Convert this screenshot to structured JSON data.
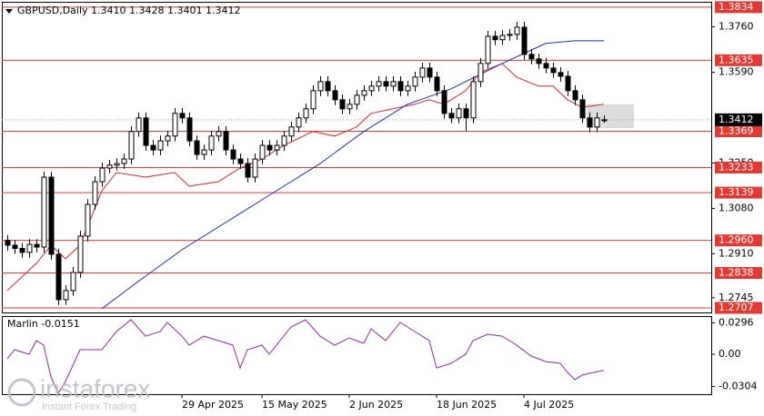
{
  "chart_data": {
    "type": "candlestick",
    "title": "GBPUSD,Daily  1.3410 1.3428 1.3401 1.3412",
    "open": [
      1.296,
      1.2942,
      1.293,
      1.2915,
      1.2945,
      1.2935,
      1.3197,
      1.2908,
      1.2738,
      1.2772,
      1.284,
      1.2976,
      1.3095,
      1.318,
      1.3231,
      1.3242,
      1.3248,
      1.3265,
      1.3368,
      1.3419,
      1.3316,
      1.3299,
      1.3333,
      1.3351,
      1.3436,
      1.3419,
      1.3333,
      1.3282,
      1.3299,
      1.3351,
      1.3368,
      1.3299,
      1.3265,
      1.3248,
      1.3197,
      1.3265,
      1.3316,
      1.3299,
      1.3316,
      1.3351,
      1.3385,
      1.3419,
      1.3453,
      1.3521,
      1.3555,
      1.3521,
      1.3487,
      1.3453,
      1.347,
      1.3504,
      1.3521,
      1.3538,
      1.3555,
      1.3538,
      1.3555,
      1.3521,
      1.3538,
      1.3572,
      1.3606,
      1.3572,
      1.3521,
      1.3436,
      1.3419,
      1.3453,
      1.3419,
      1.3555,
      1.3623,
      1.3725,
      1.3712,
      1.3728,
      1.3732,
      1.3759,
      1.3657,
      1.364,
      1.3623,
      1.3606,
      1.3589,
      1.3575,
      1.3521,
      1.3487,
      1.3419,
      1.3385,
      1.341
    ],
    "high": [
      1.298,
      1.2962,
      1.295,
      1.2965,
      1.2965,
      1.3217,
      1.3217,
      1.2928,
      1.2792,
      1.286,
      1.2996,
      1.3115,
      1.32,
      1.3251,
      1.3262,
      1.3268,
      1.3285,
      1.3388,
      1.3439,
      1.3439,
      1.3336,
      1.3353,
      1.3371,
      1.3456,
      1.3456,
      1.3439,
      1.3353,
      1.3319,
      1.3371,
      1.3388,
      1.3388,
      1.3319,
      1.3285,
      1.3268,
      1.3285,
      1.3336,
      1.3336,
      1.3336,
      1.3371,
      1.3405,
      1.3439,
      1.3473,
      1.3541,
      1.3575,
      1.3575,
      1.3541,
      1.3507,
      1.349,
      1.3524,
      1.3541,
      1.3558,
      1.3575,
      1.3575,
      1.3575,
      1.3575,
      1.3558,
      1.3592,
      1.3626,
      1.3626,
      1.3592,
      1.3541,
      1.3456,
      1.3473,
      1.3473,
      1.3575,
      1.3643,
      1.3745,
      1.3745,
      1.3748,
      1.3752,
      1.3779,
      1.3779,
      1.3677,
      1.366,
      1.3643,
      1.3626,
      1.3609,
      1.3595,
      1.3541,
      1.3507,
      1.3439,
      1.3439,
      1.3428
    ],
    "low": [
      1.2922,
      1.291,
      1.2895,
      1.2895,
      1.2915,
      1.2915,
      1.2888,
      1.2718,
      1.2718,
      1.2752,
      1.282,
      1.2956,
      1.3075,
      1.316,
      1.3211,
      1.3222,
      1.3228,
      1.3245,
      1.3348,
      1.3296,
      1.3279,
      1.3279,
      1.3313,
      1.3331,
      1.3399,
      1.3313,
      1.3262,
      1.3262,
      1.3279,
      1.3331,
      1.3279,
      1.3245,
      1.3228,
      1.3177,
      1.3177,
      1.3245,
      1.3279,
      1.3279,
      1.3296,
      1.3331,
      1.3365,
      1.3399,
      1.3433,
      1.3501,
      1.3501,
      1.3467,
      1.3433,
      1.3433,
      1.345,
      1.3484,
      1.3501,
      1.3518,
      1.3518,
      1.3518,
      1.3501,
      1.3501,
      1.3518,
      1.3552,
      1.3552,
      1.3501,
      1.3416,
      1.3399,
      1.3399,
      1.337,
      1.3399,
      1.3535,
      1.3603,
      1.3692,
      1.3692,
      1.3708,
      1.3712,
      1.3637,
      1.362,
      1.3603,
      1.3586,
      1.3569,
      1.3555,
      1.3501,
      1.3467,
      1.3399,
      1.3365,
      1.3365,
      1.3401
    ],
    "close": [
      1.2942,
      1.293,
      1.2915,
      1.2945,
      1.2935,
      1.3197,
      1.2908,
      1.2738,
      1.2772,
      1.284,
      1.2976,
      1.3095,
      1.318,
      1.3231,
      1.3242,
      1.3248,
      1.3265,
      1.3368,
      1.3419,
      1.3316,
      1.3299,
      1.3333,
      1.3351,
      1.3436,
      1.3419,
      1.3333,
      1.3282,
      1.3299,
      1.3351,
      1.3368,
      1.3299,
      1.3265,
      1.3248,
      1.3197,
      1.3265,
      1.3316,
      1.3299,
      1.3316,
      1.3351,
      1.3385,
      1.3419,
      1.3453,
      1.3521,
      1.3555,
      1.3521,
      1.3487,
      1.3453,
      1.347,
      1.3504,
      1.3521,
      1.3538,
      1.3555,
      1.3538,
      1.3555,
      1.3521,
      1.3538,
      1.3572,
      1.3606,
      1.3572,
      1.3521,
      1.3436,
      1.3419,
      1.3453,
      1.3419,
      1.3555,
      1.3623,
      1.3725,
      1.3712,
      1.3728,
      1.3732,
      1.3759,
      1.3657,
      1.364,
      1.3623,
      1.3606,
      1.3589,
      1.3575,
      1.3521,
      1.3487,
      1.3419,
      1.3385,
      1.3419,
      1.3412
    ],
    "bull_color": "#ffffff",
    "bear_color": "#000000",
    "xlim": [
      -0.75,
      96.75
    ],
    "ylim": [
      1.269,
      1.3854
    ],
    "yticks": [
      {
        "value": 1.376,
        "label": "1.3760"
      },
      {
        "value": 1.359,
        "label": "1.3590"
      },
      {
        "value": 1.325,
        "label": "1.3250"
      },
      {
        "value": 1.308,
        "label": "1.3080"
      },
      {
        "value": 1.291,
        "label": "1.2910"
      },
      1.2745
    ],
    "xticks": [
      {
        "value": 24,
        "label": "29 Apr 2025"
      },
      {
        "value": 35,
        "label": "15 May 2025"
      },
      {
        "value": 47,
        "label": "2 Jun 2025"
      },
      {
        "value": 59,
        "label": "18 Jun 2025"
      },
      {
        "value": 71,
        "label": "4 Jul 2025"
      }
    ],
    "levels": [
      1.3834,
      1.3635,
      1.3369,
      1.3233,
      1.3139,
      {
        "value": 1.296,
        "label": "1.2960"
      },
      1.2838,
      1.2707
    ],
    "level_color": "#e23a32",
    "last_price": 1.3412,
    "lines": [
      {
        "color": "#d8262e",
        "x": [
          0,
          4,
          6,
          8,
          10,
          13,
          15,
          19,
          23,
          25,
          29,
          32,
          35,
          38,
          42,
          45,
          48,
          50,
          53,
          56,
          58,
          60,
          63,
          65,
          68,
          70,
          73,
          75,
          77,
          79,
          82
        ],
        "values": [
          1.2772,
          1.2874,
          1.2942,
          1.2891,
          1.2942,
          1.3146,
          1.3214,
          1.3197,
          1.3214,
          1.3163,
          1.318,
          1.3231,
          1.3265,
          1.3316,
          1.3368,
          1.3351,
          1.3385,
          1.3436,
          1.3453,
          1.347,
          1.3487,
          1.347,
          1.3521,
          1.3589,
          1.3623,
          1.3572,
          1.3538,
          1.3538,
          1.3487,
          1.3459,
          1.347
        ]
      },
      {
        "color": "#1a2fb0",
        "x": [
          13,
          18,
          24,
          30,
          36,
          43,
          49,
          55,
          61,
          68,
          74,
          78,
          82
        ],
        "values": [
          1.2704,
          1.2806,
          1.2925,
          1.3027,
          1.3129,
          1.3248,
          1.3368,
          1.347,
          1.3528,
          1.3623,
          1.3698,
          1.3708,
          1.3708
        ]
      }
    ],
    "indicator": {
      "title": "Marlin -0.0151",
      "color": "#8b2aa8",
      "ylim": [
        -0.0377,
        0.036
      ],
      "yticks": [
        0.0296,
        {
          "value": 0,
          "label": "0.00"
        },
        -0.0304
      ],
      "x": [
        0,
        1,
        3,
        4,
        5,
        6,
        7,
        8,
        10,
        13,
        15,
        17,
        19,
        21,
        22,
        24,
        25,
        27,
        29,
        31,
        32,
        33,
        35,
        36,
        39,
        41,
        43,
        45,
        47,
        49,
        50,
        52,
        54,
        56,
        58,
        59,
        61,
        63,
        64,
        66,
        68,
        70,
        72,
        74,
        76,
        77,
        78,
        79,
        80,
        82
      ],
      "values": [
        -0.0043,
        0.0043,
        0,
        0.0129,
        0.0086,
        -0.0214,
        -0.0368,
        -0.0257,
        0.0043,
        0.0043,
        0.0214,
        0.0326,
        0.0171,
        0.0214,
        0.03,
        0.0171,
        0.0086,
        0.0171,
        0.0129,
        0.0086,
        -0.0129,
        0.0043,
        0.0086,
        0,
        0.0257,
        0.0326,
        0.0171,
        0.0086,
        0.0154,
        0.0103,
        0.024,
        0.0129,
        0.03,
        0.0214,
        0.0129,
        -0.0129,
        -0.0086,
        0,
        0.0129,
        0.0189,
        0.0171,
        0.0086,
        -0.0017,
        -0.0069,
        -0.0086,
        -0.0171,
        -0.024,
        -0.0197,
        -0.018,
        -0.0151
      ]
    }
  },
  "watermark": {
    "brand": "instaforex",
    "tagline": "Instant Forex Trading"
  }
}
